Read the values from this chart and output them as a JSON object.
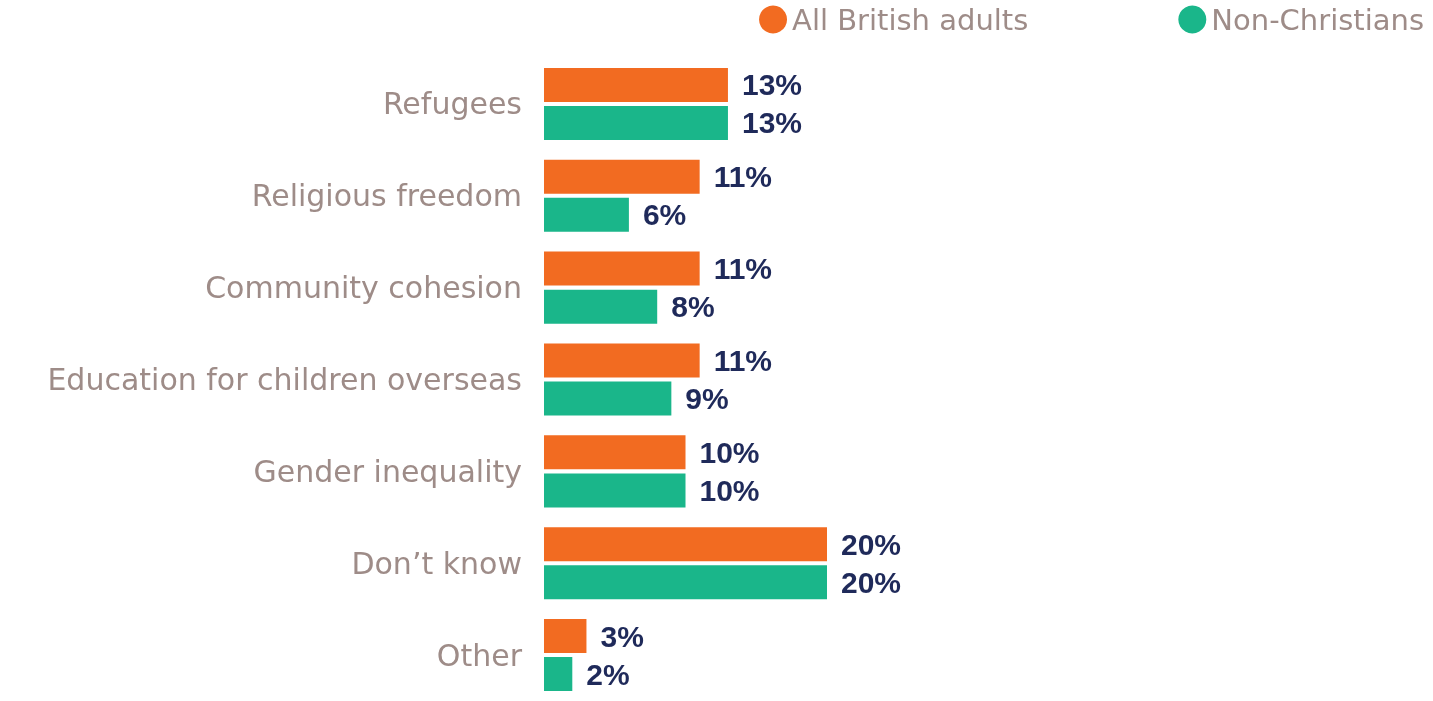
{
  "chart_data": {
    "type": "bar",
    "orientation": "horizontal",
    "categories": [
      "Refugees",
      "Religious freedom",
      "Community cohesion",
      "Education for children overseas",
      "Gender inequality",
      "Don’t know",
      "Other"
    ],
    "series": [
      {
        "name": "All British adults",
        "color": "#f26b21",
        "values": [
          13,
          11,
          11,
          11,
          10,
          20,
          3
        ],
        "value_labels": [
          "13%",
          "11%",
          "11%",
          "11%",
          "10%",
          "20%",
          "3%"
        ]
      },
      {
        "name": "Non-Christians",
        "color": "#1ab68a",
        "values": [
          13,
          6,
          8,
          9,
          10,
          20,
          2
        ],
        "value_labels": [
          "13%",
          "6%",
          "8%",
          "9%",
          "10%",
          "20%",
          "2%"
        ]
      }
    ],
    "legend": "top right"
  }
}
